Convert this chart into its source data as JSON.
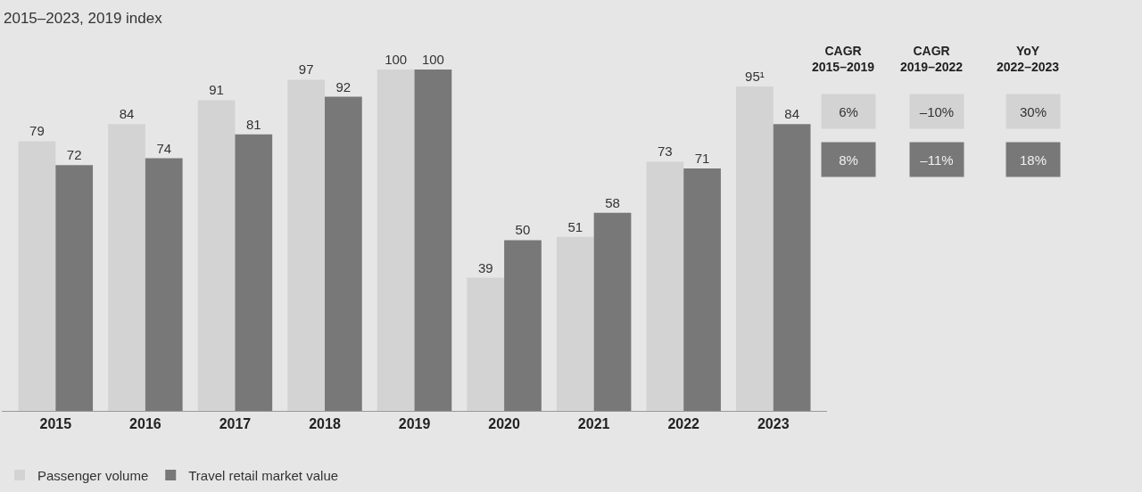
{
  "chart_data": {
    "type": "bar",
    "subtitle": "2015–2023, 2019 index",
    "categories": [
      "2015",
      "2016",
      "2017",
      "2018",
      "2019",
      "2020",
      "2021",
      "2022",
      "2023"
    ],
    "series": [
      {
        "name": "Passenger volume",
        "color": "#d3d3d3",
        "values": [
          79,
          84,
          91,
          97,
          100,
          39,
          51,
          73,
          95
        ],
        "value_labels": [
          "79",
          "84",
          "91",
          "97",
          "100",
          "39",
          "51",
          "73",
          "95¹"
        ]
      },
      {
        "name": "Travel retail market value",
        "color": "#787878",
        "values": [
          72,
          74,
          81,
          92,
          100,
          50,
          58,
          71,
          84
        ],
        "value_labels": [
          "72",
          "74",
          "81",
          "92",
          "100",
          "50",
          "58",
          "71",
          "84"
        ]
      }
    ],
    "annotations": [
      "CAGR\n2015–2019",
      "CAGR\n2019–2022",
      "YoY\n2022–2023",
      "6%",
      "–10%",
      "30%",
      "8%",
      "–11%",
      "18%"
    ],
    "legend": "bottom left"
  }
}
